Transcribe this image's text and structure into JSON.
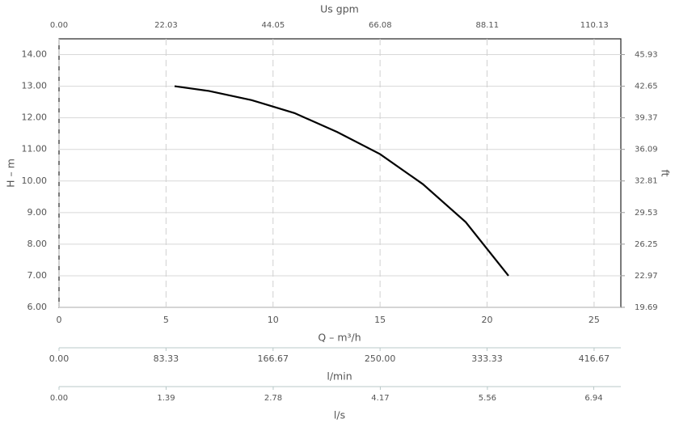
{
  "chart_data": {
    "type": "line",
    "x_label": "Q – m³/h",
    "y_label": "H – m",
    "y2_label": "ft",
    "x": [
      5.4,
      7,
      9,
      11,
      13,
      15,
      17,
      19,
      21
    ],
    "values": [
      13.0,
      12.85,
      12.56,
      12.15,
      11.55,
      10.85,
      9.9,
      8.7,
      7.0
    ],
    "color": "#000000",
    "xlim": [
      0,
      26.25
    ],
    "xticks": [
      0,
      5,
      10,
      15,
      20,
      25
    ],
    "ylim": [
      6,
      14.5
    ],
    "yticks": [
      {
        "value": 6,
        "label": "6.00"
      },
      {
        "value": 7,
        "label": "7.00"
      },
      {
        "value": 8,
        "label": "8.00"
      },
      {
        "value": 9,
        "label": "9.00"
      },
      {
        "value": 10,
        "label": "10.00"
      },
      {
        "value": 11,
        "label": "11.00"
      },
      {
        "value": 12,
        "label": "12.00"
      },
      {
        "value": 13,
        "label": "13.00"
      },
      {
        "value": 14,
        "label": "14.00"
      }
    ],
    "y2lim": [
      19.685,
      47.57
    ],
    "y2ticks": [
      19.69,
      22.97,
      26.25,
      29.53,
      32.81,
      36.09,
      39.37,
      42.65,
      45.93
    ],
    "top_axis": {
      "label": "Us gpm",
      "xlim": [
        0,
        115.58
      ],
      "xticks": [
        {
          "value": 0,
          "label": "0.00"
        },
        22.03,
        44.05,
        66.08,
        88.11,
        110.13
      ]
    },
    "bottom_axes": [
      {
        "label": "l/min",
        "xlim": [
          0,
          437.5
        ],
        "xticks": [
          {
            "value": 0,
            "label": "0.00"
          },
          83.33,
          166.67,
          {
            "value": 250,
            "label": "250.00"
          },
          333.33,
          416.67
        ]
      },
      {
        "label": "l/s",
        "xlim": [
          0,
          7.292
        ],
        "xticks": [
          {
            "value": 0,
            "label": "0.00"
          },
          1.39,
          2.78,
          4.17,
          5.56,
          6.94
        ]
      }
    ],
    "grid": true
  }
}
